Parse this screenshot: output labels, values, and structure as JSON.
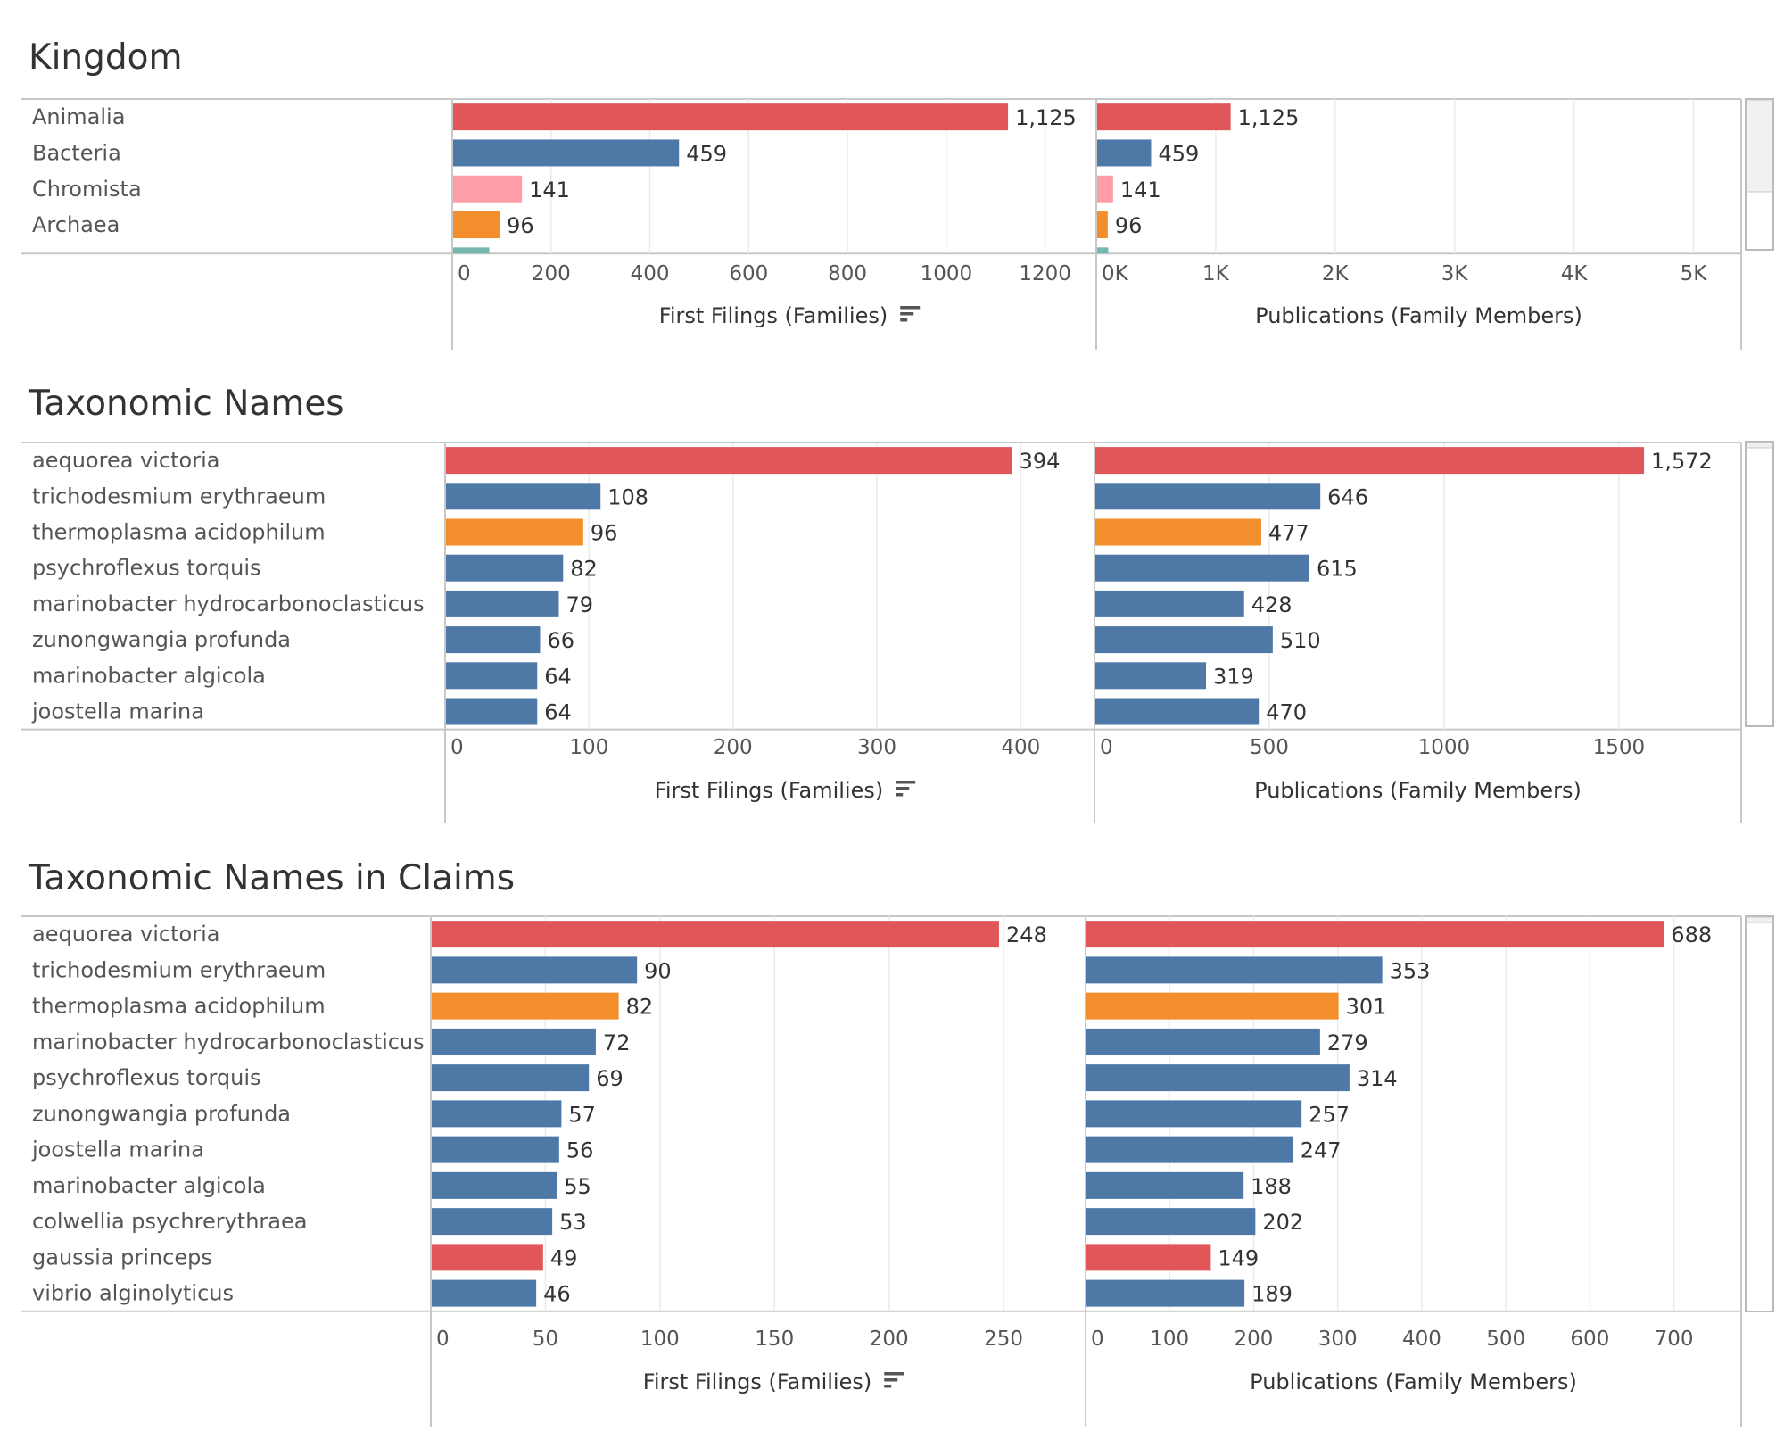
{
  "colors": {
    "red": "#e15759",
    "blue": "#4e79a7",
    "pink": "#ff9da7",
    "orange": "#f28e2b",
    "teal": "#76b7b2",
    "grid": "#ebebeb",
    "axis": "#c8c8c8",
    "text": "#333333",
    "muted": "#555555"
  },
  "icons": {
    "sort": "sort-descending-icon"
  },
  "chart_data": [
    {
      "type": "bar",
      "title": "Kingdom",
      "categories": [
        "Animalia",
        "Bacteria",
        "Chromista",
        "Archaea",
        ""
      ],
      "colors": [
        "red",
        "blue",
        "pink",
        "orange",
        "teal"
      ],
      "series": [
        {
          "name": "First Filings (Families)",
          "values": [
            1125,
            459,
            141,
            96,
            75
          ],
          "labels": [
            "1,125",
            "459",
            "141",
            "96",
            ""
          ],
          "xlim": [
            0,
            1300
          ],
          "ticks": [
            0,
            200,
            400,
            600,
            800,
            1000,
            1200
          ],
          "tick_labels": [
            "0",
            "200",
            "400",
            "600",
            "800",
            "1000",
            "1200"
          ],
          "sorted": true
        },
        {
          "name": "Publications (Family Members)",
          "values": [
            1125,
            459,
            141,
            96,
            100
          ],
          "labels": [
            "1,125",
            "459",
            "141",
            "96",
            ""
          ],
          "xlim": [
            0,
            5400
          ],
          "ticks": [
            0,
            1000,
            2000,
            3000,
            4000,
            5000
          ],
          "tick_labels": [
            "0K",
            "1K",
            "2K",
            "3K",
            "4K",
            "5K"
          ],
          "sorted": false
        }
      ],
      "legend": "none",
      "grid": true
    },
    {
      "type": "bar",
      "title": "Taxonomic Names",
      "categories": [
        "aequorea victoria",
        "trichodesmium erythraeum",
        "thermoplasma acidophilum",
        "psychroflexus torquis",
        "marinobacter hydrocarbonoclasticus",
        "zunongwangia profunda",
        "marinobacter algicola",
        "joostella marina"
      ],
      "colors": [
        "red",
        "blue",
        "orange",
        "blue",
        "blue",
        "blue",
        "blue",
        "blue"
      ],
      "series": [
        {
          "name": "First Filings (Families)",
          "values": [
            394,
            108,
            96,
            82,
            79,
            66,
            64,
            64
          ],
          "labels": [
            "394",
            "108",
            "96",
            "82",
            "79",
            "66",
            "64",
            "64"
          ],
          "xlim": [
            0,
            450
          ],
          "ticks": [
            0,
            100,
            200,
            300,
            400
          ],
          "tick_labels": [
            "0",
            "100",
            "200",
            "300",
            "400"
          ],
          "sorted": true
        },
        {
          "name": "Publications (Family Members)",
          "values": [
            1572,
            646,
            477,
            615,
            428,
            510,
            319,
            470
          ],
          "labels": [
            "1,572",
            "646",
            "477",
            "615",
            "428",
            "510",
            "319",
            "470"
          ],
          "xlim": [
            0,
            1850
          ],
          "ticks": [
            0,
            500,
            1000,
            1500
          ],
          "tick_labels": [
            "0",
            "500",
            "1000",
            "1500"
          ],
          "sorted": false
        }
      ],
      "legend": "none",
      "grid": true
    },
    {
      "type": "bar",
      "title": "Taxonomic Names in Claims",
      "categories": [
        "aequorea victoria",
        "trichodesmium erythraeum",
        "thermoplasma acidophilum",
        "marinobacter hydrocarbonoclasticus",
        "psychroflexus torquis",
        "zunongwangia profunda",
        "joostella marina",
        "marinobacter algicola",
        "colwellia psychrerythraea",
        "gaussia princeps",
        "vibrio alginolyticus"
      ],
      "colors": [
        "red",
        "blue",
        "orange",
        "blue",
        "blue",
        "blue",
        "blue",
        "blue",
        "blue",
        "red",
        "blue"
      ],
      "series": [
        {
          "name": "First Filings (Families)",
          "values": [
            248,
            90,
            82,
            72,
            69,
            57,
            56,
            55,
            53,
            49,
            46
          ],
          "labels": [
            "248",
            "90",
            "82",
            "72",
            "69",
            "57",
            "56",
            "55",
            "53",
            "49",
            "46"
          ],
          "xlim": [
            0,
            285
          ],
          "ticks": [
            0,
            50,
            100,
            150,
            200,
            250
          ],
          "tick_labels": [
            "0",
            "50",
            "100",
            "150",
            "200",
            "250"
          ],
          "sorted": true
        },
        {
          "name": "Publications (Family Members)",
          "values": [
            688,
            353,
            301,
            279,
            314,
            257,
            247,
            188,
            202,
            149,
            189
          ],
          "labels": [
            "688",
            "353",
            "301",
            "279",
            "314",
            "257",
            "247",
            "188",
            "202",
            "149",
            "189"
          ],
          "xlim": [
            0,
            780
          ],
          "ticks": [
            0,
            100,
            200,
            300,
            400,
            500,
            600,
            700
          ],
          "tick_labels": [
            "0",
            "100",
            "200",
            "300",
            "400",
            "500",
            "600",
            "700"
          ],
          "sorted": false
        }
      ],
      "legend": "none",
      "grid": true
    }
  ]
}
